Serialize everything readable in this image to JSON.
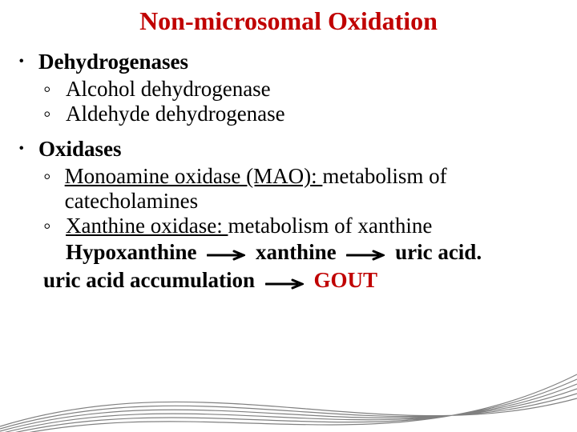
{
  "title": {
    "text": "Non-microsomal Oxidation",
    "color": "#c00000",
    "fontsize": 32
  },
  "body": {
    "fontsize": 27,
    "text_color": "#000000",
    "gout_color": "#c00000",
    "bullet_glyph": "･",
    "sub_bullet_glyph": "◦",
    "section1": {
      "heading": "Dehydrogenases",
      "items": [
        "Alcohol dehydrogenase",
        "Aldehyde dehydrogenase"
      ]
    },
    "section2": {
      "heading": "Oxidases",
      "item1": {
        "underlined": "Monoamine oxidase (MAO): ",
        "rest": "metabolism of catecholamines"
      },
      "item2": {
        "underlined": "Xanthine oxidase: ",
        "rest": "metabolism of xanthine"
      },
      "pathway1": {
        "a": "Hypoxanthine",
        "b": "xanthine",
        "c": "uric acid."
      },
      "pathway2": {
        "a": "uric acid accumulation",
        "b": "GOUT"
      }
    }
  },
  "arrow": {
    "width": 48,
    "height": 14,
    "stroke": "#000000",
    "stroke_width": 3
  },
  "swoosh": {
    "stroke": "#808080",
    "stroke_width": 1.2
  }
}
